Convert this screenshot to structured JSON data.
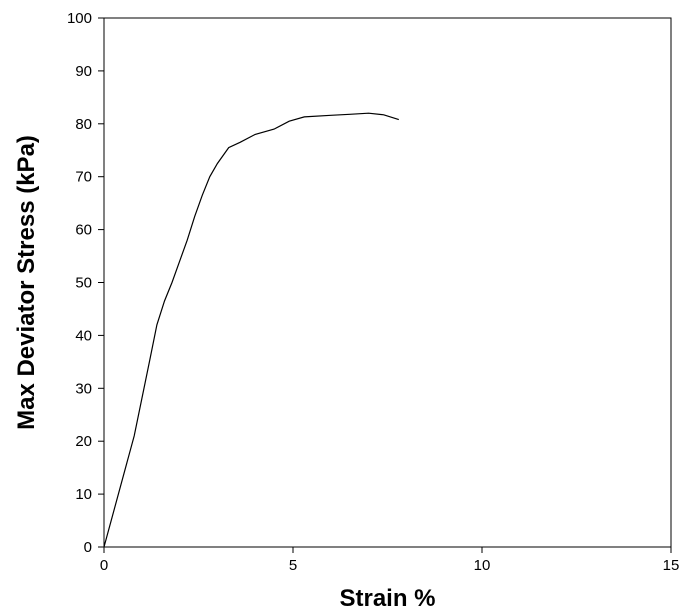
{
  "chart_data": {
    "type": "line",
    "title": "",
    "xlabel": "Strain %",
    "ylabel": "Max Deviator Stress (kPa)",
    "xlim": [
      0,
      15
    ],
    "ylim": [
      0,
      100
    ],
    "x_ticks": [
      0,
      5,
      10,
      15
    ],
    "y_ticks": [
      0,
      10,
      20,
      30,
      40,
      50,
      60,
      70,
      80,
      90,
      100
    ],
    "grid": false,
    "legend": "none",
    "series": [
      {
        "color": "#000000",
        "x": [
          0,
          0.8,
          1.0,
          1.2,
          1.4,
          1.6,
          1.8,
          2.0,
          2.2,
          2.4,
          2.6,
          2.8,
          3.0,
          3.3,
          3.6,
          4.0,
          4.5,
          4.9,
          5.3,
          6.0,
          6.5,
          7.0,
          7.4,
          7.8
        ],
        "y": [
          0,
          21,
          28,
          35,
          42,
          46.5,
          50,
          54,
          58,
          62.5,
          66.5,
          70,
          72.5,
          75.5,
          76.5,
          78,
          79,
          80.5,
          81.3,
          81.6,
          81.8,
          82,
          81.7,
          80.8
        ]
      }
    ]
  }
}
